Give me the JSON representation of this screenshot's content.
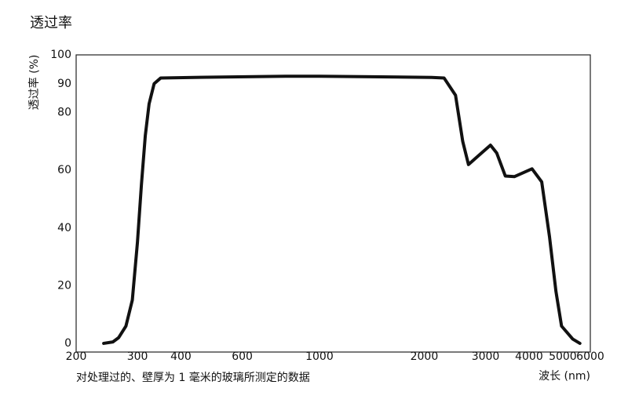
{
  "chart_data": {
    "type": "line",
    "title": "透过率",
    "y_label": "透过率 (%)",
    "x_label": "波长 (nm)",
    "caption": "对处理过的、壁厚为 1 毫米的玻璃所测定的数据",
    "x_scale": "log",
    "xlim": [
      200,
      6000
    ],
    "xticks": [
      200,
      300,
      400,
      600,
      1000,
      2000,
      3000,
      4000,
      5000,
      6000
    ],
    "ylim": [
      -3,
      100
    ],
    "yticks": [
      0,
      20,
      40,
      60,
      80,
      90,
      100
    ],
    "grid": false,
    "series": [
      {
        "name": "透过率",
        "color": "#111111",
        "x": [
          240,
          255,
          265,
          278,
          290,
          300,
          308,
          316,
          324,
          335,
          350,
          500,
          800,
          1000,
          1500,
          2100,
          2280,
          2460,
          2580,
          2680,
          2860,
          3100,
          3230,
          3420,
          3630,
          4080,
          4350,
          4580,
          4780,
          4960,
          5340,
          5600
        ],
        "values": [
          0,
          0.5,
          2,
          6,
          15,
          35,
          55,
          72,
          83,
          90,
          92,
          92.3,
          92.6,
          92.6,
          92.4,
          92.2,
          92,
          86,
          70,
          62,
          65,
          68.7,
          66,
          58,
          57.8,
          60.5,
          56,
          37,
          18,
          6,
          1.5,
          0
        ]
      }
    ]
  }
}
